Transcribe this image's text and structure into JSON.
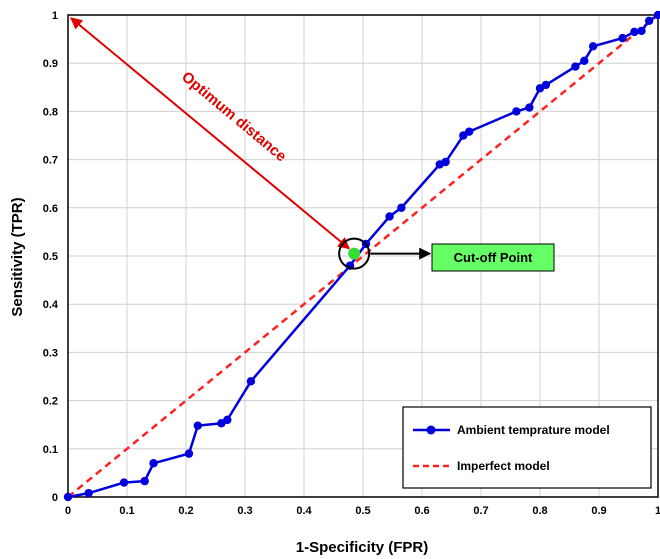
{
  "chart_data": {
    "type": "line",
    "xlabel": "1-Specificity (FPR)",
    "ylabel": "Sensitivity (TPR)",
    "xlim": [
      0,
      1
    ],
    "ylim": [
      0,
      1
    ],
    "x_ticks": [
      "0",
      "0.1",
      "0.2",
      "0.3",
      "0.4",
      "0.5",
      "0.6",
      "0.7",
      "0.8",
      "0.9",
      "1"
    ],
    "y_ticks": [
      "0",
      "0.1",
      "0.2",
      "0.3",
      "0.4",
      "0.5",
      "0.6",
      "0.7",
      "0.8",
      "0.9",
      "1"
    ],
    "grid": true,
    "legend_position": "bottom-right",
    "series": [
      {
        "name": "Ambient temprature model",
        "color": "#0000ff",
        "style": "line-marker",
        "points": [
          [
            0.0,
            0.0
          ],
          [
            0.035,
            0.008
          ],
          [
            0.095,
            0.03
          ],
          [
            0.13,
            0.033
          ],
          [
            0.145,
            0.07
          ],
          [
            0.205,
            0.09
          ],
          [
            0.22,
            0.148
          ],
          [
            0.26,
            0.153
          ],
          [
            0.27,
            0.16
          ],
          [
            0.31,
            0.24
          ],
          [
            0.478,
            0.48
          ],
          [
            0.505,
            0.525
          ],
          [
            0.545,
            0.582
          ],
          [
            0.565,
            0.6
          ],
          [
            0.63,
            0.69
          ],
          [
            0.64,
            0.695
          ],
          [
            0.67,
            0.75
          ],
          [
            0.68,
            0.758
          ],
          [
            0.76,
            0.8
          ],
          [
            0.782,
            0.808
          ],
          [
            0.8,
            0.848
          ],
          [
            0.81,
            0.855
          ],
          [
            0.86,
            0.893
          ],
          [
            0.875,
            0.905
          ],
          [
            0.89,
            0.935
          ],
          [
            0.94,
            0.952
          ],
          [
            0.96,
            0.965
          ],
          [
            0.972,
            0.967
          ],
          [
            0.985,
            0.988
          ],
          [
            1.0,
            1.0
          ]
        ]
      },
      {
        "name": "Imperfect model",
        "color": "#ff2020",
        "style": "dashed",
        "points": [
          [
            0,
            0
          ],
          [
            1,
            1
          ]
        ]
      }
    ],
    "annotations": {
      "optimum_label": "Optimum distance",
      "cutoff_label": "Cut-off Point",
      "cutoff_point": [
        0.485,
        0.505
      ],
      "cutoff_marker_color": "#33dd33",
      "cutoff_box_color": "#66ff66",
      "arrow_color": "#e00000"
    }
  }
}
